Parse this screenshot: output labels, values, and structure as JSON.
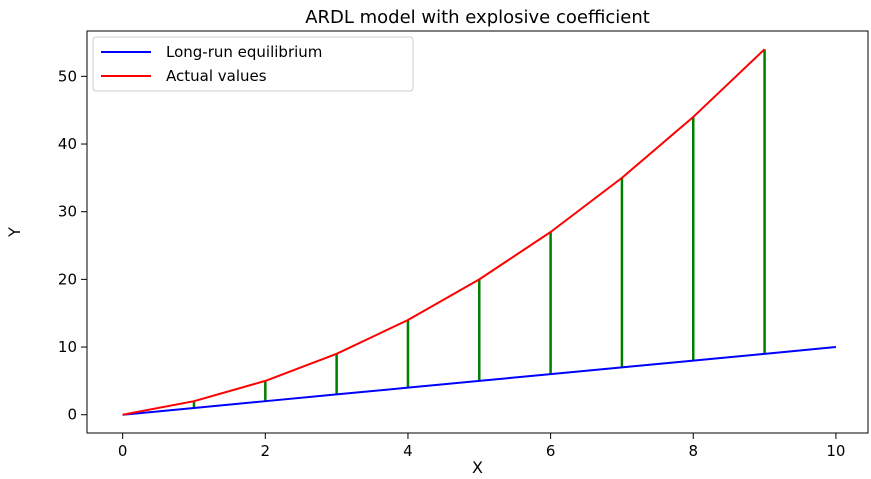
{
  "chart_data": {
    "type": "line",
    "title": "ARDL model with explosive coefficient",
    "xlabel": "X",
    "ylabel": "Y",
    "xlim": [
      -0.5,
      10.45
    ],
    "ylim": [
      -2.7,
      56.7
    ],
    "x_ticks": [
      0,
      2,
      4,
      6,
      8,
      10
    ],
    "y_ticks": [
      0,
      10,
      20,
      30,
      40,
      50
    ],
    "grid": false,
    "legend_position": "upper-left",
    "series": [
      {
        "name": "Long-run equilibrium",
        "color": "#0000ff",
        "x": [
          0,
          1,
          2,
          3,
          4,
          5,
          6,
          7,
          8,
          9,
          10
        ],
        "y": [
          0,
          1,
          2,
          3,
          4,
          5,
          6,
          7,
          8,
          9,
          10
        ]
      },
      {
        "name": "Actual values",
        "color": "#ff0000",
        "x": [
          0,
          1,
          2,
          3,
          4,
          5,
          6,
          7,
          8,
          9
        ],
        "y": [
          0,
          2,
          5,
          9,
          14,
          20,
          27,
          35,
          44,
          54
        ]
      }
    ],
    "deviation_lines": {
      "color": "#008000",
      "x": [
        1,
        2,
        3,
        4,
        5,
        6,
        7,
        8,
        9
      ]
    }
  }
}
